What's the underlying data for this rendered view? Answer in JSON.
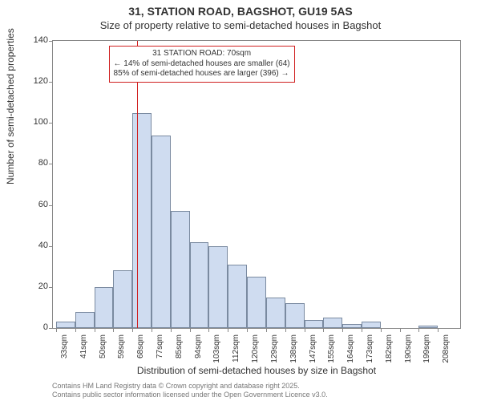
{
  "title_line1": "31, STATION ROAD, BAGSHOT, GU19 5AS",
  "title_line2": "Size of property relative to semi-detached houses in Bagshot",
  "ylabel": "Number of semi-detached properties",
  "xlabel": "Distribution of semi-detached houses by size in Bagshot",
  "footer_line1": "Contains HM Land Registry data © Crown copyright and database right 2025.",
  "footer_line2": "Contains public sector information licensed under the Open Government Licence v3.0.",
  "chart": {
    "type": "histogram",
    "ylim": [
      0,
      140
    ],
    "ytick_step": 20,
    "xticks": [
      "33sqm",
      "41sqm",
      "50sqm",
      "59sqm",
      "68sqm",
      "77sqm",
      "85sqm",
      "94sqm",
      "103sqm",
      "112sqm",
      "120sqm",
      "129sqm",
      "138sqm",
      "147sqm",
      "155sqm",
      "164sqm",
      "173sqm",
      "182sqm",
      "190sqm",
      "199sqm",
      "208sqm"
    ],
    "values": [
      3,
      8,
      20,
      28,
      105,
      94,
      57,
      42,
      40,
      31,
      25,
      15,
      12,
      4,
      5,
      2,
      3,
      0,
      0,
      1,
      0
    ],
    "bar_fill": "#cfdcf0",
    "bar_stroke": "#7a8aa0",
    "plot_border": "#888888",
    "background": "#ffffff",
    "vline": {
      "color": "#d02020",
      "position_index": 4,
      "position_sqm": 70
    },
    "annotation": {
      "line1": "← 14% of semi-detached houses are smaller (64)",
      "line2": "85% of semi-detached houses are larger (396) →",
      "title": "31 STATION ROAD: 70sqm",
      "border_color": "#d02020",
      "bg_color": "#ffffff"
    }
  }
}
